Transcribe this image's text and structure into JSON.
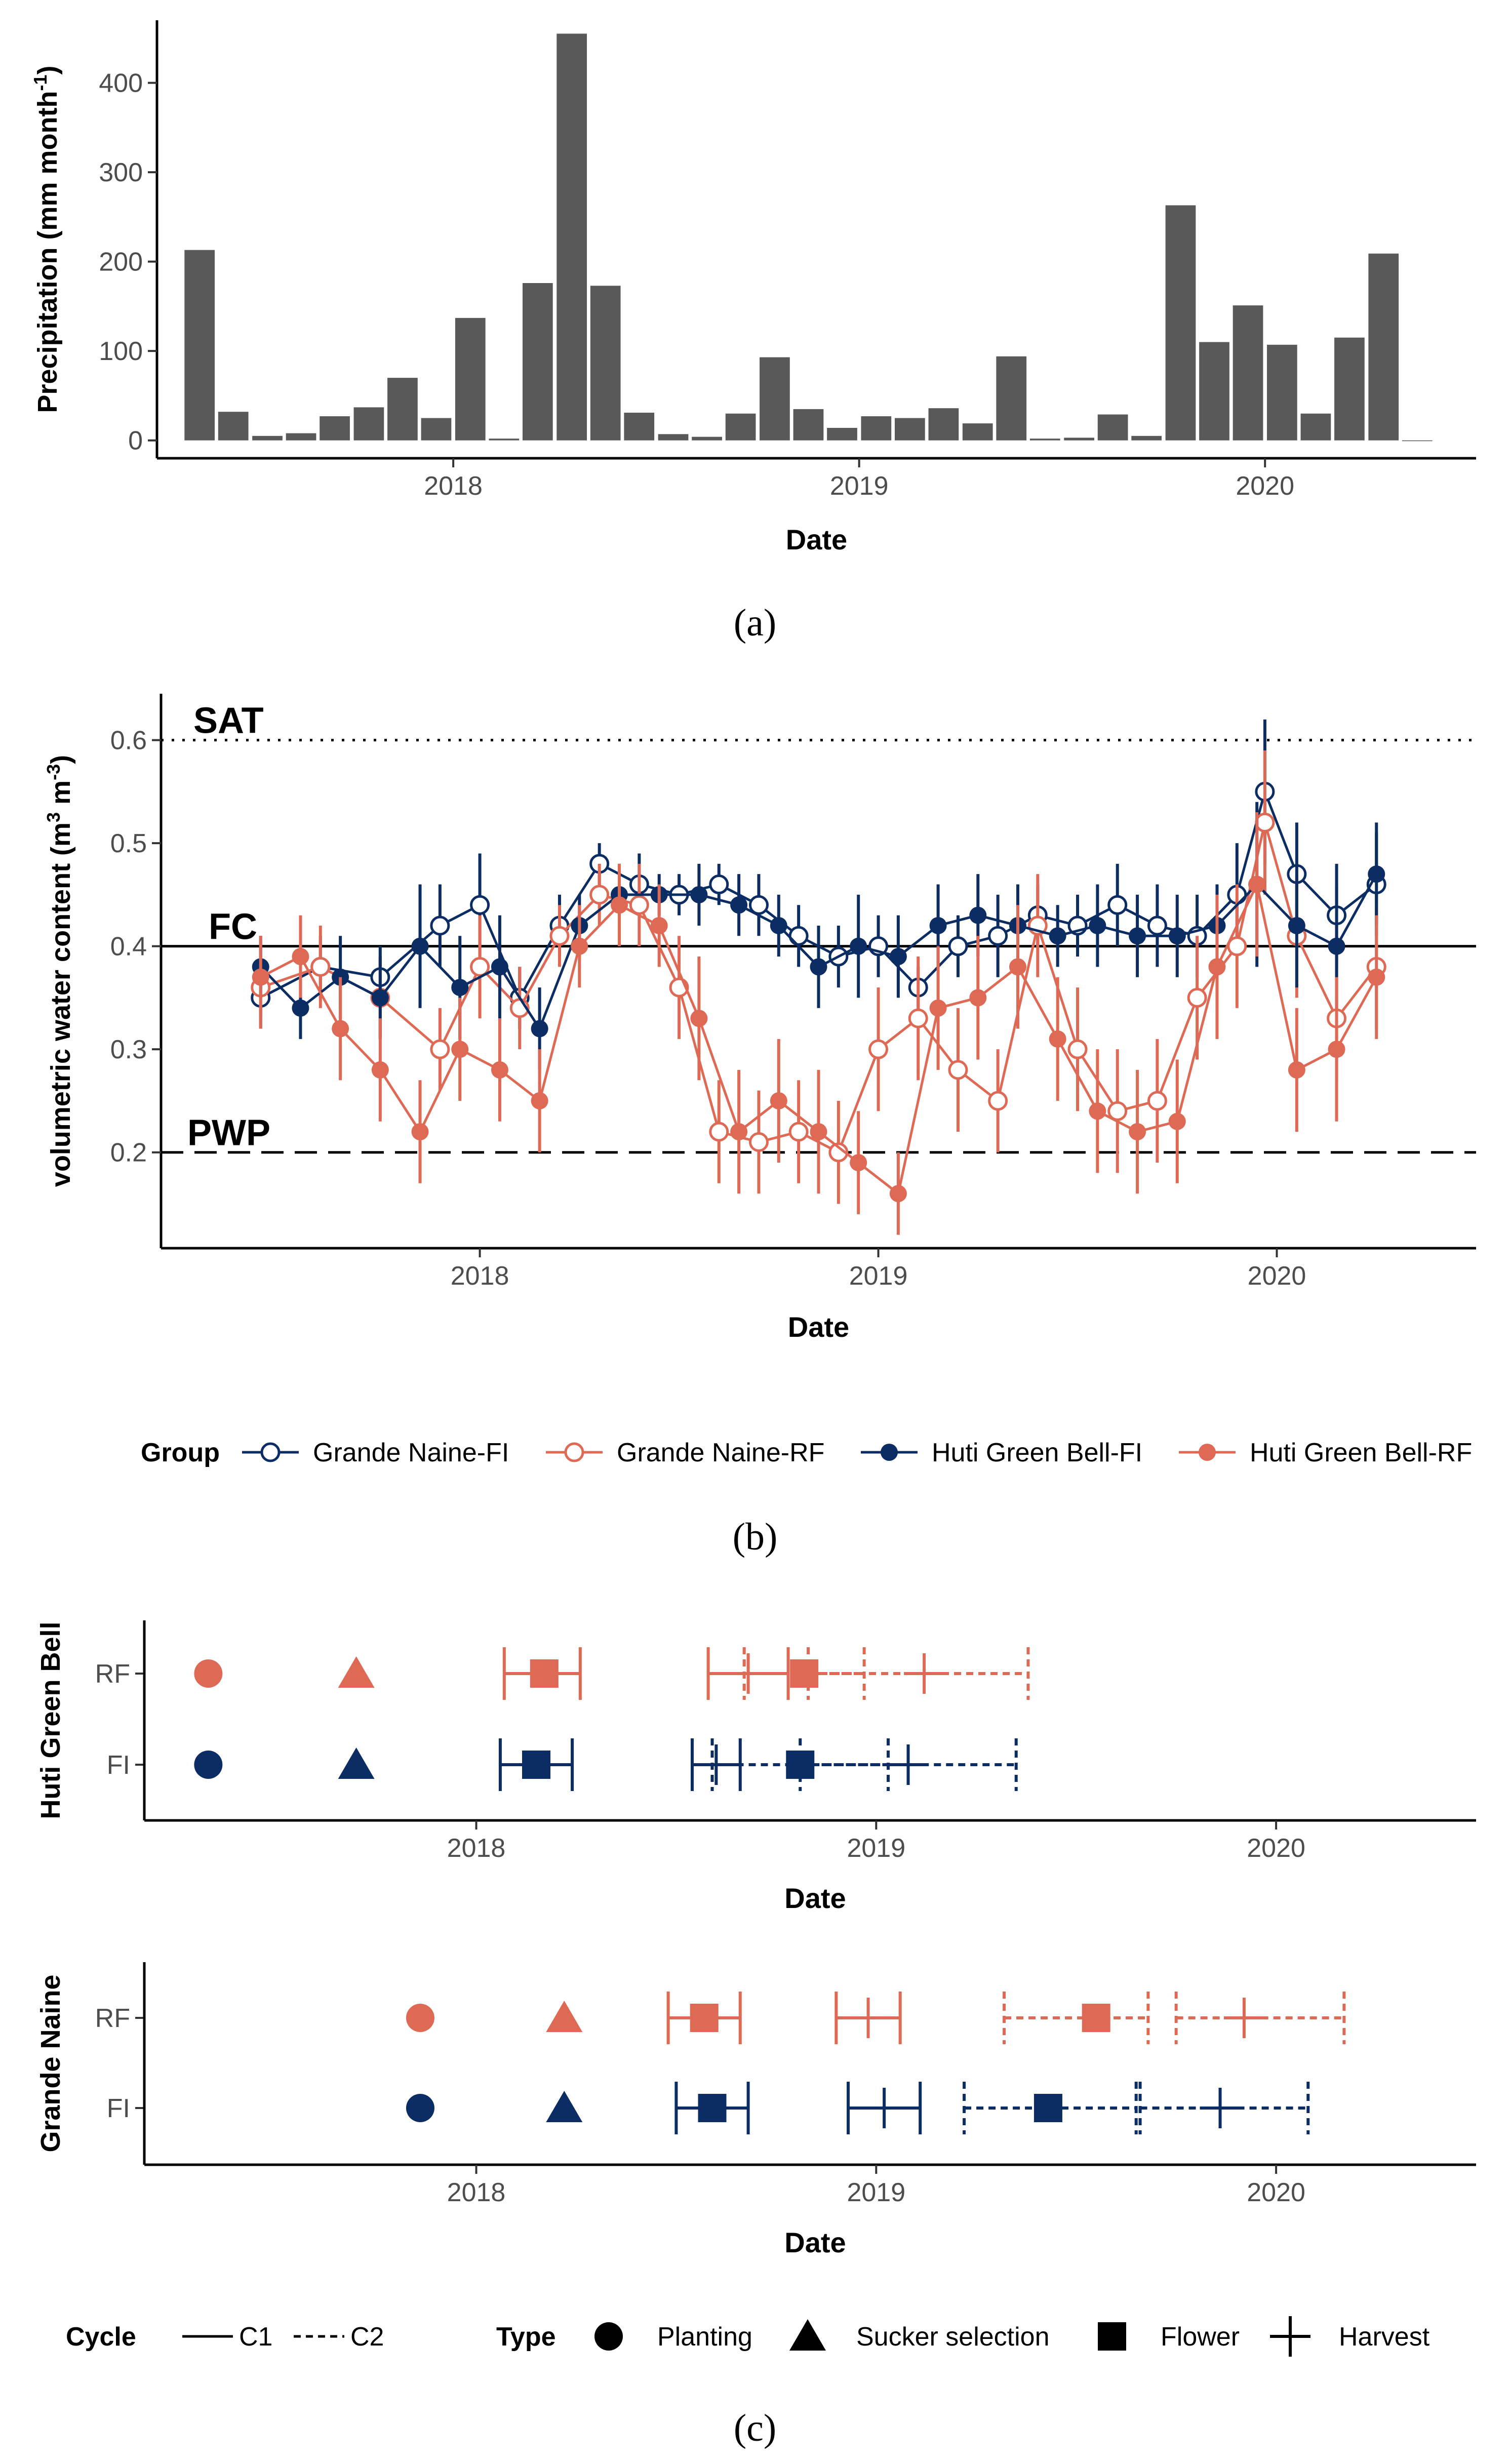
{
  "colors": {
    "fi": "#0b2d63",
    "rf": "#de6a55",
    "bar": "#595959",
    "axis": "#000000",
    "tick": "#4d4d4d"
  },
  "chart_data": [
    {
      "id": "a",
      "panel_label": "(a)",
      "type": "bar",
      "title": "",
      "xlabel": "Date",
      "ylabel": "Precipitation (mm month",
      "ylabel_sup": "-1",
      "ylabel_end": ")",
      "xlim": [
        2017.27,
        2020.52
      ],
      "ylim": [
        -20,
        470
      ],
      "xticks": [
        {
          "v": 2018,
          "label": "2018"
        },
        {
          "v": 2019,
          "label": "2019"
        },
        {
          "v": 2020,
          "label": "2020"
        }
      ],
      "yticks": [
        {
          "v": 0,
          "label": "0"
        },
        {
          "v": 100,
          "label": "100"
        },
        {
          "v": 200,
          "label": "200"
        },
        {
          "v": 300,
          "label": "300"
        },
        {
          "v": 400,
          "label": "400"
        }
      ],
      "bar_width": 0.0745,
      "x": [
        2017.375,
        2017.458,
        2017.542,
        2017.625,
        2017.708,
        2017.792,
        2017.875,
        2017.958,
        2018.042,
        2018.125,
        2018.208,
        2018.292,
        2018.375,
        2018.458,
        2018.542,
        2018.625,
        2018.708,
        2018.792,
        2018.875,
        2018.958,
        2019.042,
        2019.125,
        2019.208,
        2019.292,
        2019.375,
        2019.458,
        2019.542,
        2019.625,
        2019.708,
        2019.792,
        2019.875,
        2019.958,
        2020.042,
        2020.125,
        2020.208,
        2020.292,
        2020.375
      ],
      "values": [
        213,
        32,
        5,
        8,
        27,
        37,
        70,
        25,
        137,
        2,
        176,
        455,
        173,
        31,
        7,
        4,
        30,
        93,
        35,
        14,
        27,
        25,
        36,
        19,
        94,
        2,
        3,
        29,
        5,
        263,
        110,
        151,
        107,
        30,
        115,
        209,
        0
      ]
    },
    {
      "id": "b",
      "panel_label": "(b)",
      "type": "line",
      "title": "",
      "xlabel": "Date",
      "ylabel": "volumetric water content (m",
      "ylabel_sup1": "3",
      "ylabel_mid": " m",
      "ylabel_sup2": "-3",
      "ylabel_end": ")",
      "xlim": [
        2017.2,
        2020.5
      ],
      "ylim": [
        0.107,
        0.645
      ],
      "xticks": [
        {
          "v": 2018,
          "label": "2018"
        },
        {
          "v": 2019,
          "label": "2019"
        },
        {
          "v": 2020,
          "label": "2020"
        }
      ],
      "yticks": [
        {
          "v": 0.2,
          "label": "0.2"
        },
        {
          "v": 0.3,
          "label": "0.3"
        },
        {
          "v": 0.4,
          "label": "0.4"
        },
        {
          "v": 0.5,
          "label": "0.5"
        },
        {
          "v": 0.6,
          "label": "0.6"
        }
      ],
      "reference_lines": [
        {
          "name": "SAT",
          "value": 0.6,
          "style": "dotted"
        },
        {
          "name": "FC",
          "value": 0.4,
          "style": "solid"
        },
        {
          "name": "PWP",
          "value": 0.2,
          "style": "dashed"
        }
      ],
      "legend_title": "Group",
      "legend_position": "bottom",
      "series": [
        {
          "name": "Grande Naine-FI",
          "color_key": "fi",
          "filled": false,
          "x": [
            2017.45,
            2017.6,
            2017.75,
            2017.9,
            2018.0,
            2018.1,
            2018.2,
            2018.3,
            2018.4,
            2018.5,
            2018.6,
            2018.7,
            2018.8,
            2018.9,
            2019.0,
            2019.1,
            2019.2,
            2019.3,
            2019.4,
            2019.5,
            2019.6,
            2019.7,
            2019.8,
            2019.9,
            2019.97,
            2020.05,
            2020.15,
            2020.25
          ],
          "values": [
            0.35,
            0.38,
            0.37,
            0.42,
            0.44,
            0.35,
            0.42,
            0.48,
            0.46,
            0.45,
            0.46,
            0.44,
            0.41,
            0.39,
            0.4,
            0.36,
            0.4,
            0.41,
            0.43,
            0.42,
            0.44,
            0.42,
            0.41,
            0.45,
            0.55,
            0.47,
            0.43,
            0.46
          ],
          "err": [
            0.03,
            0.03,
            0.03,
            0.04,
            0.05,
            0.03,
            0.03,
            0.02,
            0.03,
            0.02,
            0.02,
            0.03,
            0.03,
            0.03,
            0.03,
            0.02,
            0.03,
            0.04,
            0.03,
            0.03,
            0.04,
            0.04,
            0.04,
            0.05,
            0.07,
            0.05,
            0.05,
            0.05
          ]
        },
        {
          "name": "Grande Naine-RF",
          "color_key": "rf",
          "filled": false,
          "x": [
            2017.45,
            2017.6,
            2017.75,
            2017.9,
            2018.0,
            2018.1,
            2018.2,
            2018.3,
            2018.4,
            2018.5,
            2018.6,
            2018.7,
            2018.8,
            2018.9,
            2019.0,
            2019.1,
            2019.2,
            2019.3,
            2019.4,
            2019.5,
            2019.6,
            2019.7,
            2019.8,
            2019.9,
            2019.97,
            2020.05,
            2020.15,
            2020.25
          ],
          "values": [
            0.36,
            0.38,
            0.35,
            0.3,
            0.38,
            0.34,
            0.41,
            0.45,
            0.44,
            0.36,
            0.22,
            0.21,
            0.22,
            0.2,
            0.3,
            0.33,
            0.28,
            0.25,
            0.42,
            0.3,
            0.24,
            0.25,
            0.35,
            0.4,
            0.52,
            0.41,
            0.33,
            0.38
          ],
          "err": [
            0.04,
            0.04,
            0.04,
            0.04,
            0.05,
            0.04,
            0.03,
            0.03,
            0.04,
            0.05,
            0.05,
            0.05,
            0.05,
            0.05,
            0.06,
            0.06,
            0.06,
            0.05,
            0.05,
            0.06,
            0.06,
            0.06,
            0.06,
            0.06,
            0.07,
            0.06,
            0.06,
            0.06
          ]
        },
        {
          "name": "Huti Green Bell-FI",
          "color_key": "fi",
          "filled": true,
          "x": [
            2017.45,
            2017.55,
            2017.65,
            2017.75,
            2017.85,
            2017.95,
            2018.05,
            2018.15,
            2018.25,
            2018.35,
            2018.45,
            2018.55,
            2018.65,
            2018.75,
            2018.85,
            2018.95,
            2019.05,
            2019.15,
            2019.25,
            2019.35,
            2019.45,
            2019.55,
            2019.65,
            2019.75,
            2019.85,
            2019.95,
            2020.05,
            2020.15,
            2020.25
          ],
          "values": [
            0.38,
            0.34,
            0.37,
            0.35,
            0.4,
            0.36,
            0.38,
            0.32,
            0.42,
            0.45,
            0.45,
            0.45,
            0.44,
            0.42,
            0.38,
            0.4,
            0.39,
            0.42,
            0.43,
            0.42,
            0.41,
            0.42,
            0.41,
            0.41,
            0.42,
            0.46,
            0.42,
            0.4,
            0.47
          ],
          "err": [
            0.03,
            0.03,
            0.04,
            0.04,
            0.06,
            0.05,
            0.05,
            0.04,
            0.03,
            0.03,
            0.02,
            0.03,
            0.03,
            0.03,
            0.04,
            0.05,
            0.04,
            0.04,
            0.04,
            0.04,
            0.03,
            0.04,
            0.04,
            0.04,
            0.04,
            0.08,
            0.06,
            0.06,
            0.05
          ]
        },
        {
          "name": "Huti Green Bell-RF",
          "color_key": "rf",
          "filled": true,
          "x": [
            2017.45,
            2017.55,
            2017.65,
            2017.75,
            2017.85,
            2017.95,
            2018.05,
            2018.15,
            2018.25,
            2018.35,
            2018.45,
            2018.55,
            2018.65,
            2018.75,
            2018.85,
            2018.95,
            2019.05,
            2019.15,
            2019.25,
            2019.35,
            2019.45,
            2019.55,
            2019.65,
            2019.75,
            2019.85,
            2019.95,
            2020.05,
            2020.15,
            2020.25
          ],
          "values": [
            0.37,
            0.39,
            0.32,
            0.28,
            0.22,
            0.3,
            0.28,
            0.25,
            0.4,
            0.44,
            0.42,
            0.33,
            0.22,
            0.25,
            0.22,
            0.19,
            0.16,
            0.34,
            0.35,
            0.38,
            0.31,
            0.24,
            0.22,
            0.23,
            0.38,
            0.46,
            0.28,
            0.3,
            0.37
          ],
          "err": [
            0.04,
            0.04,
            0.05,
            0.05,
            0.05,
            0.05,
            0.05,
            0.05,
            0.04,
            0.04,
            0.04,
            0.06,
            0.06,
            0.06,
            0.06,
            0.05,
            0.04,
            0.06,
            0.06,
            0.06,
            0.06,
            0.06,
            0.06,
            0.06,
            0.07,
            0.07,
            0.06,
            0.07,
            0.06
          ]
        }
      ]
    },
    {
      "id": "c",
      "panel_label": "(c)",
      "type": "scatter",
      "title": "",
      "xlabel": "Date",
      "xlim": [
        2017.17,
        2020.5
      ],
      "xticks": [
        {
          "v": 2018,
          "label": "2018"
        },
        {
          "v": 2019,
          "label": "2019"
        },
        {
          "v": 2020,
          "label": "2020"
        }
      ],
      "categories": [
        "RF",
        "FI"
      ],
      "legend": {
        "cycle_title": "Cycle",
        "cycles": [
          {
            "name": "C1",
            "style": "solid"
          },
          {
            "name": "C2",
            "style": "dashed"
          }
        ],
        "type_title": "Type",
        "types": [
          {
            "name": "Planting",
            "shape": "circle"
          },
          {
            "name": "Sucker selection",
            "shape": "triangle"
          },
          {
            "name": "Flower",
            "shape": "square"
          },
          {
            "name": "Harvest",
            "shape": "plus"
          }
        ]
      },
      "facets": [
        {
          "name": "Huti Green Bell",
          "rows": [
            {
              "category": "RF",
              "color_key": "rf",
              "points": [
                {
                  "type": "circle",
                  "cycle": "C1",
                  "x": 2017.33
                },
                {
                  "type": "triangle",
                  "cycle": "C1",
                  "x": 2017.7
                },
                {
                  "type": "square",
                  "cycle": "C1",
                  "x": 2018.17,
                  "xmin": 2018.07,
                  "xmax": 2018.26
                },
                {
                  "type": "plus",
                  "cycle": "C1",
                  "x": 2018.68,
                  "xmin": 2018.58,
                  "xmax": 2018.78
                },
                {
                  "type": "square",
                  "cycle": "C2",
                  "x": 2018.82,
                  "xmin": 2018.67,
                  "xmax": 2018.97
                },
                {
                  "type": "plus",
                  "cycle": "C2",
                  "x": 2019.12,
                  "xmin": 2018.83,
                  "xmax": 2019.38
                }
              ]
            },
            {
              "category": "FI",
              "color_key": "fi",
              "points": [
                {
                  "type": "circle",
                  "cycle": "C1",
                  "x": 2017.33
                },
                {
                  "type": "triangle",
                  "cycle": "C1",
                  "x": 2017.7
                },
                {
                  "type": "square",
                  "cycle": "C1",
                  "x": 2018.15,
                  "xmin": 2018.06,
                  "xmax": 2018.24
                },
                {
                  "type": "plus",
                  "cycle": "C1",
                  "x": 2018.6,
                  "xmin": 2018.54,
                  "xmax": 2018.66
                },
                {
                  "type": "square",
                  "cycle": "C2",
                  "x": 2018.81,
                  "xmin": 2018.59,
                  "xmax": 2019.03
                },
                {
                  "type": "plus",
                  "cycle": "C2",
                  "x": 2019.08,
                  "xmin": 2018.81,
                  "xmax": 2019.35
                }
              ]
            }
          ]
        },
        {
          "name": "Grande Naine",
          "rows": [
            {
              "category": "RF",
              "color_key": "rf",
              "points": [
                {
                  "type": "circle",
                  "cycle": "C1",
                  "x": 2017.86
                },
                {
                  "type": "triangle",
                  "cycle": "C1",
                  "x": 2018.22
                },
                {
                  "type": "square",
                  "cycle": "C1",
                  "x": 2018.57,
                  "xmin": 2018.48,
                  "xmax": 2018.66
                },
                {
                  "type": "plus",
                  "cycle": "C1",
                  "x": 2018.98,
                  "xmin": 2018.9,
                  "xmax": 2019.06
                },
                {
                  "type": "square",
                  "cycle": "C2",
                  "x": 2019.55,
                  "xmin": 2019.32,
                  "xmax": 2019.68
                },
                {
                  "type": "plus",
                  "cycle": "C2",
                  "x": 2019.92,
                  "xmin": 2019.75,
                  "xmax": 2020.17
                }
              ]
            },
            {
              "category": "FI",
              "color_key": "fi",
              "points": [
                {
                  "type": "circle",
                  "cycle": "C1",
                  "x": 2017.86
                },
                {
                  "type": "triangle",
                  "cycle": "C1",
                  "x": 2018.22
                },
                {
                  "type": "square",
                  "cycle": "C1",
                  "x": 2018.59,
                  "xmin": 2018.5,
                  "xmax": 2018.68
                },
                {
                  "type": "plus",
                  "cycle": "C1",
                  "x": 2019.02,
                  "xmin": 2018.93,
                  "xmax": 2019.11
                },
                {
                  "type": "square",
                  "cycle": "C2",
                  "x": 2019.43,
                  "xmin": 2019.22,
                  "xmax": 2019.65
                },
                {
                  "type": "plus",
                  "cycle": "C2",
                  "x": 2019.86,
                  "xmin": 2019.66,
                  "xmax": 2020.08
                }
              ]
            }
          ]
        }
      ]
    }
  ]
}
